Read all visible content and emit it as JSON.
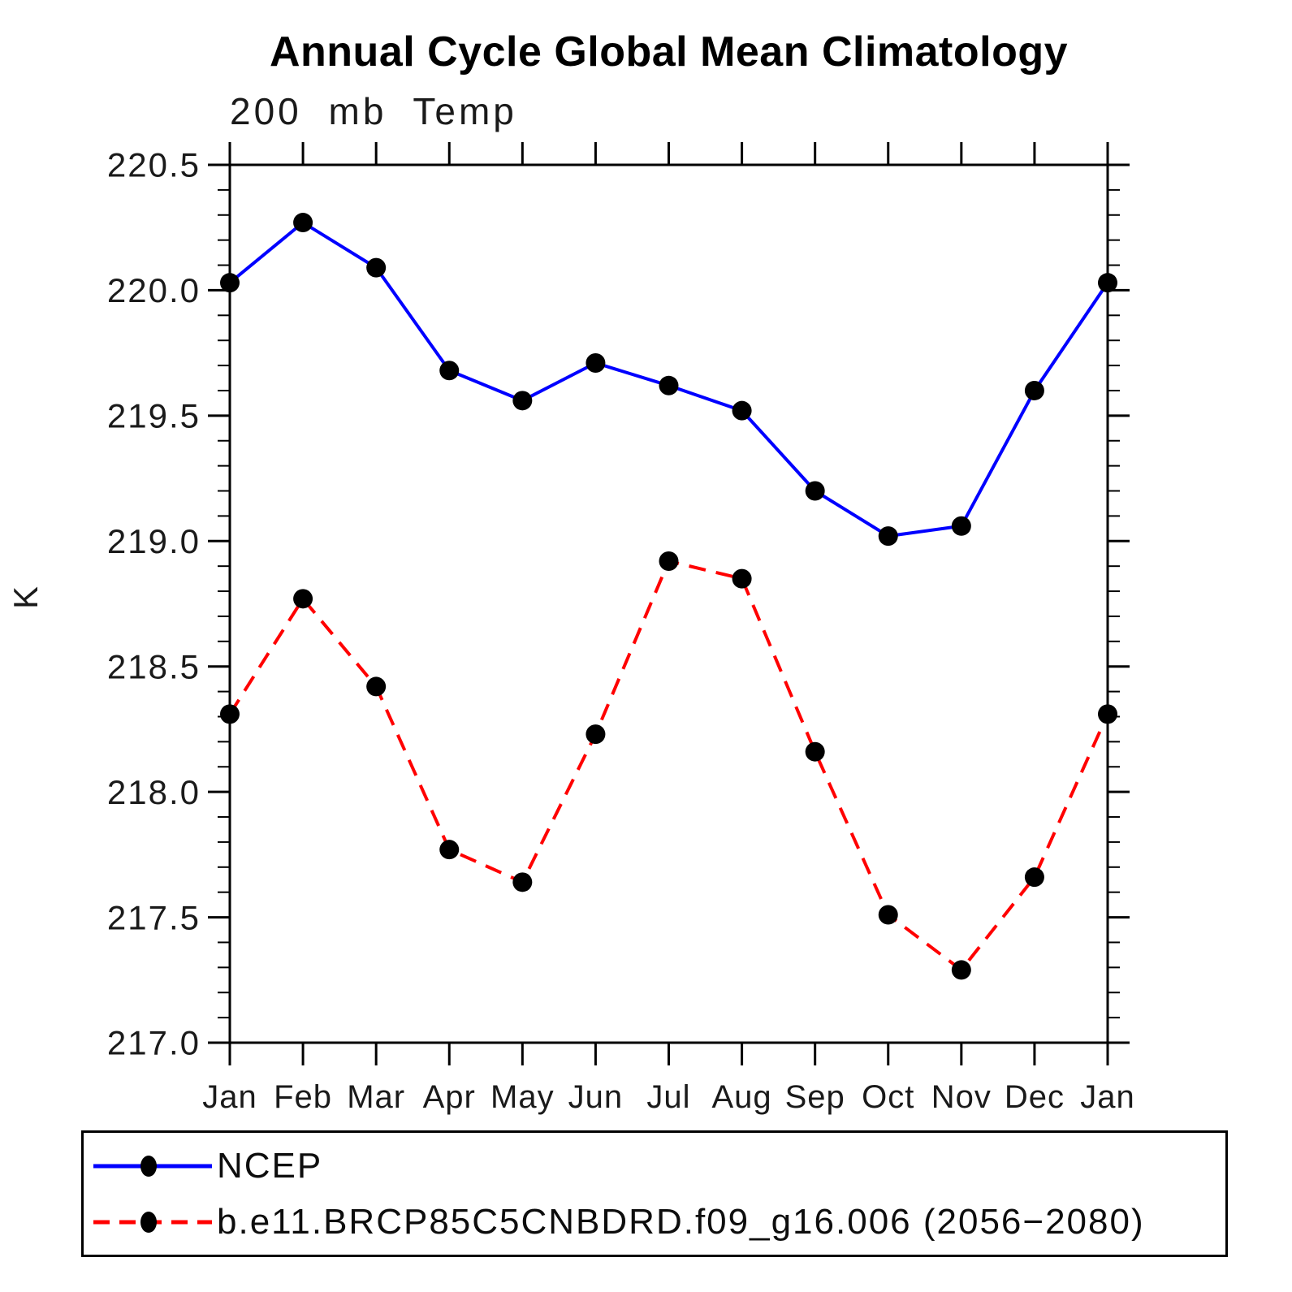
{
  "page": {
    "background": "#ffffff",
    "text_color": "#000000"
  },
  "chart_data": {
    "type": "line",
    "title": "Annual Cycle Global Mean Climatology",
    "subtitle": "200 mb Temp",
    "xlabel": "",
    "ylabel": "K",
    "ylim": [
      217.0,
      220.5
    ],
    "y_major_step": 0.5,
    "y_minor_step": 0.1,
    "y_tick_labels": [
      "217.0",
      "217.5",
      "218.0",
      "218.5",
      "219.0",
      "219.5",
      "220.0",
      "220.5"
    ],
    "categories": [
      "Jan",
      "Feb",
      "Mar",
      "Apr",
      "May",
      "Jun",
      "Jul",
      "Aug",
      "Sep",
      "Oct",
      "Nov",
      "Dec",
      "Jan"
    ],
    "series": [
      {
        "name": "NCEP",
        "color": "#0000ff",
        "style": "solid",
        "marker": "circle",
        "marker_color": "#000000",
        "values": [
          220.03,
          220.27,
          220.09,
          219.68,
          219.56,
          219.71,
          219.62,
          219.52,
          219.2,
          219.02,
          219.06,
          219.6,
          220.03
        ]
      },
      {
        "name": "b.e11.BRCP85C5CNBDRD.f09_g16.006 (2056−2080)",
        "color": "#ff0000",
        "style": "dashed",
        "marker": "circle",
        "marker_color": "#000000",
        "values": [
          218.31,
          218.77,
          218.42,
          217.77,
          217.64,
          218.23,
          218.92,
          218.85,
          218.16,
          217.51,
          217.29,
          217.66,
          218.31
        ]
      }
    ],
    "grid": false,
    "legend_position": "bottom",
    "axis_color": "#000000",
    "tick_direction": "outward"
  }
}
